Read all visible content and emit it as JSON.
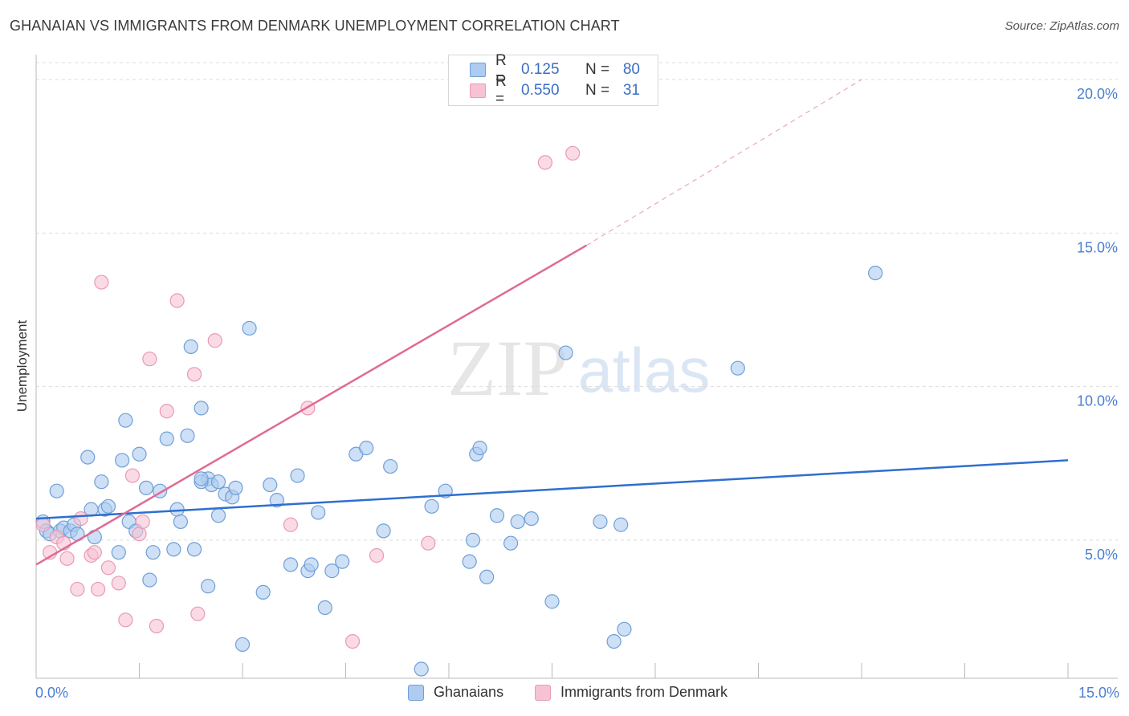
{
  "header": {
    "title": "GHANAIAN VS IMMIGRANTS FROM DENMARK UNEMPLOYMENT CORRELATION CHART",
    "source": "Source: ZipAtlas.com"
  },
  "legend": {
    "r_label": "R =",
    "n_label": "N =",
    "rows": [
      {
        "r": "0.125",
        "n": "80"
      },
      {
        "r": "0.550",
        "n": "31"
      }
    ]
  },
  "bottom_legend": [
    "Ghanaians",
    "Immigrants from Denmark"
  ],
  "watermark": {
    "zip": "ZIP",
    "atlas": "atlas"
  },
  "colors": {
    "blue_fill": "#aecbf0",
    "blue_stroke": "#6f9fd8",
    "blue_line": "#2e6fcf",
    "pink_fill": "#f7c3d3",
    "pink_stroke": "#e89ab4",
    "pink_line": "#e06a94",
    "axis_text": "#4a7fd0",
    "grid": "#dcdcdc"
  },
  "chart_data": {
    "type": "scatter",
    "title": "GHANAIAN VS IMMIGRANTS FROM DENMARK UNEMPLOYMENT CORRELATION CHART",
    "xlabel": "",
    "ylabel": "Unemployment",
    "xlim": [
      0,
      15
    ],
    "ylim": [
      0.5,
      20.5
    ],
    "x_tick_labels": [
      "0.0%",
      "15.0%"
    ],
    "y_ticks": [
      5,
      10,
      15,
      20
    ],
    "y_tick_labels": [
      "5.0%",
      "10.0%",
      "15.0%",
      "20.0%"
    ],
    "series": [
      {
        "name": "Ghanaians",
        "r": 0.125,
        "n": 80,
        "trend": {
          "x0": 0,
          "y0": 5.7,
          "x1": 15,
          "y1": 7.6
        },
        "points": [
          [
            0.1,
            5.6
          ],
          [
            0.15,
            5.3
          ],
          [
            0.2,
            5.2
          ],
          [
            0.3,
            6.6
          ],
          [
            0.35,
            5.3
          ],
          [
            0.4,
            5.4
          ],
          [
            0.5,
            5.3
          ],
          [
            0.55,
            5.5
          ],
          [
            0.6,
            5.2
          ],
          [
            0.75,
            7.7
          ],
          [
            0.8,
            6.0
          ],
          [
            0.85,
            5.1
          ],
          [
            0.95,
            6.9
          ],
          [
            1.0,
            6.0
          ],
          [
            1.05,
            6.1
          ],
          [
            1.2,
            4.6
          ],
          [
            1.25,
            7.6
          ],
          [
            1.3,
            8.9
          ],
          [
            1.35,
            5.6
          ],
          [
            1.45,
            5.3
          ],
          [
            1.5,
            7.8
          ],
          [
            1.6,
            6.7
          ],
          [
            1.65,
            3.7
          ],
          [
            1.7,
            4.6
          ],
          [
            1.8,
            6.6
          ],
          [
            1.9,
            8.3
          ],
          [
            2.0,
            4.7
          ],
          [
            2.05,
            6.0
          ],
          [
            2.1,
            5.6
          ],
          [
            2.2,
            8.4
          ],
          [
            2.25,
            11.3
          ],
          [
            2.3,
            4.7
          ],
          [
            2.4,
            9.3
          ],
          [
            2.5,
            7.0
          ],
          [
            2.55,
            6.8
          ],
          [
            2.65,
            6.9
          ],
          [
            2.4,
            6.9
          ],
          [
            2.4,
            7.0
          ],
          [
            2.5,
            3.5
          ],
          [
            2.65,
            5.8
          ],
          [
            2.75,
            6.5
          ],
          [
            2.85,
            6.4
          ],
          [
            2.9,
            6.7
          ],
          [
            3.0,
            1.6
          ],
          [
            3.1,
            11.9
          ],
          [
            3.3,
            3.3
          ],
          [
            3.4,
            6.8
          ],
          [
            3.5,
            6.3
          ],
          [
            3.7,
            4.2
          ],
          [
            3.8,
            7.1
          ],
          [
            3.95,
            4.0
          ],
          [
            4.0,
            4.2
          ],
          [
            4.1,
            5.9
          ],
          [
            4.2,
            2.8
          ],
          [
            4.3,
            4.0
          ],
          [
            4.45,
            4.3
          ],
          [
            4.65,
            7.8
          ],
          [
            4.8,
            8.0
          ],
          [
            5.05,
            5.3
          ],
          [
            5.15,
            7.4
          ],
          [
            5.6,
            0.8
          ],
          [
            5.75,
            6.1
          ],
          [
            5.95,
            6.6
          ],
          [
            6.3,
            4.3
          ],
          [
            6.35,
            5.0
          ],
          [
            6.4,
            7.8
          ],
          [
            6.45,
            8.0
          ],
          [
            6.55,
            3.8
          ],
          [
            6.7,
            5.8
          ],
          [
            6.9,
            4.9
          ],
          [
            7.0,
            5.6
          ],
          [
            7.2,
            5.7
          ],
          [
            7.5,
            3.0
          ],
          [
            7.7,
            11.1
          ],
          [
            8.2,
            5.6
          ],
          [
            8.4,
            1.7
          ],
          [
            8.5,
            5.5
          ],
          [
            8.55,
            2.1
          ],
          [
            10.2,
            10.6
          ],
          [
            12.2,
            13.7
          ]
        ]
      },
      {
        "name": "Immigrants from Denmark",
        "r": 0.55,
        "n": 31,
        "trend": {
          "x0": 0,
          "y0": 4.2,
          "x1": 8,
          "y1": 14.6
        },
        "trend_extension": {
          "x0": 8,
          "y0": 14.6,
          "x1": 12,
          "y1": 20.0
        },
        "points": [
          [
            0.1,
            5.5
          ],
          [
            0.2,
            4.6
          ],
          [
            0.3,
            5.1
          ],
          [
            0.4,
            4.9
          ],
          [
            0.45,
            4.4
          ],
          [
            0.6,
            3.4
          ],
          [
            0.65,
            5.7
          ],
          [
            0.8,
            4.5
          ],
          [
            0.85,
            4.6
          ],
          [
            0.9,
            3.4
          ],
          [
            0.95,
            13.4
          ],
          [
            1.05,
            4.1
          ],
          [
            1.2,
            3.6
          ],
          [
            1.3,
            2.4
          ],
          [
            1.4,
            7.1
          ],
          [
            1.5,
            5.2
          ],
          [
            1.55,
            5.6
          ],
          [
            1.65,
            10.9
          ],
          [
            1.75,
            2.2
          ],
          [
            1.9,
            9.2
          ],
          [
            2.05,
            12.8
          ],
          [
            2.3,
            10.4
          ],
          [
            2.35,
            2.6
          ],
          [
            2.6,
            11.5
          ],
          [
            3.7,
            5.5
          ],
          [
            3.95,
            9.3
          ],
          [
            4.6,
            1.7
          ],
          [
            4.95,
            4.5
          ],
          [
            5.7,
            4.9
          ],
          [
            7.4,
            17.3
          ],
          [
            7.8,
            17.6
          ]
        ]
      }
    ],
    "legend_position": "top-center"
  }
}
